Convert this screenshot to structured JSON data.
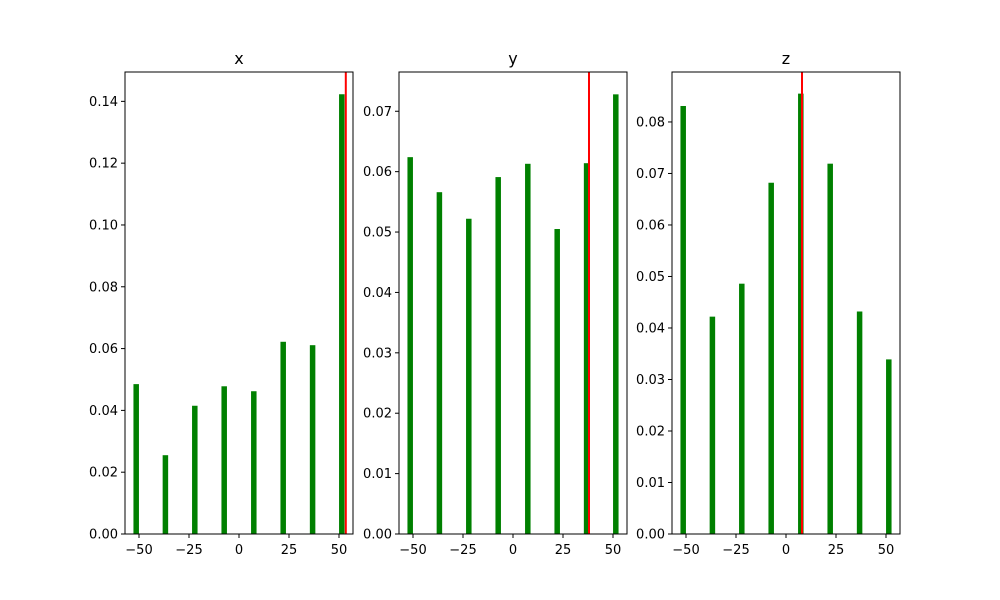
{
  "colors": {
    "bar": "#008000",
    "marker_line": "#ff0000",
    "axes": "#000000"
  },
  "chart_data": [
    {
      "type": "bar",
      "title": "x",
      "x": [
        -51.4,
        -36.8,
        -22.1,
        -7.4,
        7.4,
        22.1,
        36.8,
        51.4
      ],
      "values": [
        0.0485,
        0.0255,
        0.0415,
        0.0478,
        0.0462,
        0.0622,
        0.0611,
        0.1423
      ],
      "xlim": [
        -57,
        57
      ],
      "ylim": [
        0,
        0.1495
      ],
      "xticks": [
        -50,
        -25,
        0,
        25,
        50
      ],
      "xtick_labels": [
        "−50",
        "−25",
        "0",
        "25",
        "50"
      ],
      "yticks": [
        0,
        0.02,
        0.04,
        0.06,
        0.08,
        0.1,
        0.12,
        0.14
      ],
      "ytick_labels": [
        "0.00",
        "0.02",
        "0.04",
        "0.06",
        "0.08",
        "0.10",
        "0.12",
        "0.14"
      ],
      "vline": 53.4
    },
    {
      "type": "bar",
      "title": "y",
      "x": [
        -51.4,
        -36.8,
        -22.1,
        -7.4,
        7.4,
        22.1,
        36.8,
        51.4
      ],
      "values": [
        0.0624,
        0.0566,
        0.0522,
        0.0591,
        0.0613,
        0.0505,
        0.0614,
        0.0728
      ],
      "xlim": [
        -57,
        57
      ],
      "ylim": [
        0,
        0.0765
      ],
      "xticks": [
        -50,
        -25,
        0,
        25,
        50
      ],
      "xtick_labels": [
        "−50",
        "−25",
        "0",
        "25",
        "50"
      ],
      "yticks": [
        0,
        0.01,
        0.02,
        0.03,
        0.04,
        0.05,
        0.06,
        0.07
      ],
      "ytick_labels": [
        "0.00",
        "0.01",
        "0.02",
        "0.03",
        "0.04",
        "0.05",
        "0.06",
        "0.07"
      ],
      "vline": 38
    },
    {
      "type": "bar",
      "title": "z",
      "x": [
        -51.4,
        -36.8,
        -22.1,
        -7.4,
        7.4,
        22.1,
        36.8,
        51.4
      ],
      "values": [
        0.0831,
        0.0422,
        0.0486,
        0.0682,
        0.0855,
        0.0719,
        0.0432,
        0.0339
      ],
      "xlim": [
        -57,
        57
      ],
      "ylim": [
        0,
        0.0897
      ],
      "xticks": [
        -50,
        -25,
        0,
        25,
        50
      ],
      "xtick_labels": [
        "−50",
        "−25",
        "0",
        "25",
        "50"
      ],
      "yticks": [
        0,
        0.01,
        0.02,
        0.03,
        0.04,
        0.05,
        0.06,
        0.07,
        0.08
      ],
      "ytick_labels": [
        "0.00",
        "0.01",
        "0.02",
        "0.03",
        "0.04",
        "0.05",
        "0.06",
        "0.07",
        "0.08"
      ],
      "vline": 8
    }
  ]
}
